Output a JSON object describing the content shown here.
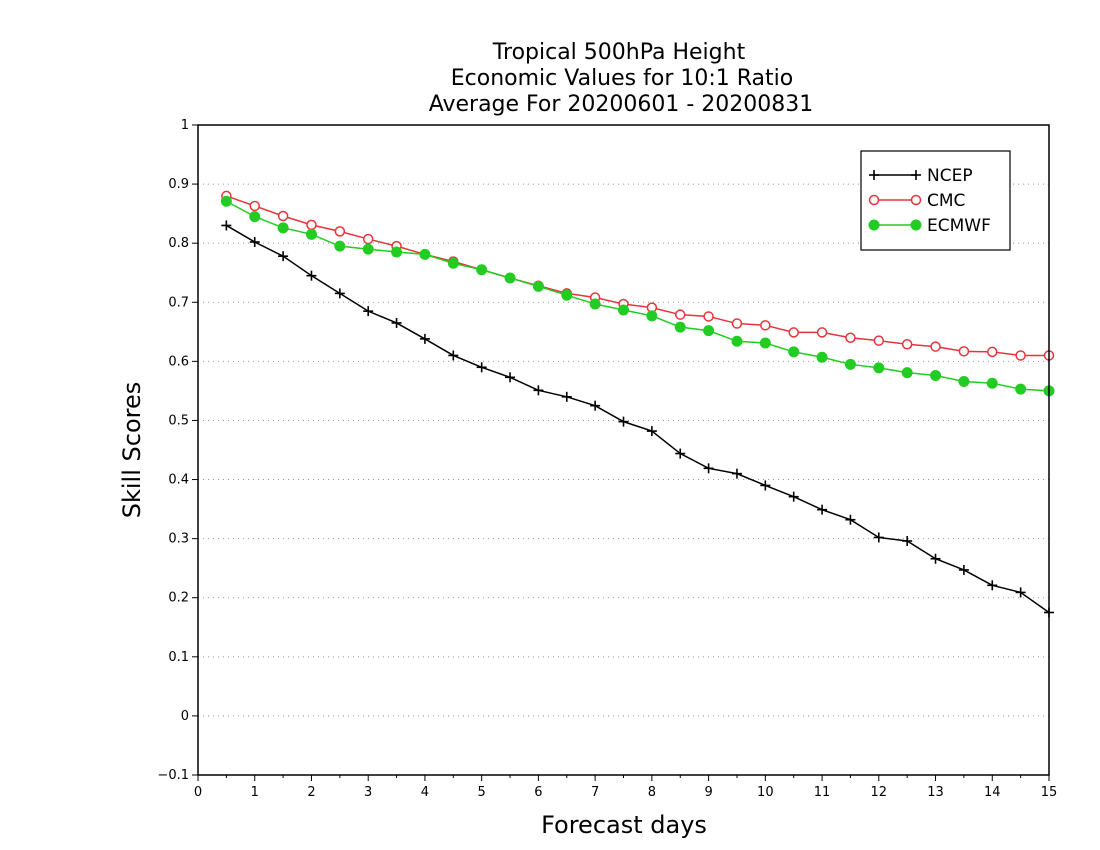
{
  "chart_data": {
    "type": "line",
    "title_lines": [
      "Tropical 500hPa Height",
      "Economic Values for 10:1 Ratio",
      "Average For 20200601 - 20200831"
    ],
    "xlabel": "Forecast days",
    "ylabel": "Skill Scores",
    "xlim": [
      0,
      15
    ],
    "ylim": [
      -0.1,
      1
    ],
    "x_ticks": [
      "0",
      "1",
      "2",
      "3",
      "4",
      "5",
      "6",
      "7",
      "8",
      "9",
      "10",
      "11",
      "12",
      "13",
      "14",
      "15"
    ],
    "y_ticks": [
      "−0.1",
      "0",
      "0.1",
      "0.2",
      "0.3",
      "0.4",
      "0.5",
      "0.6",
      "0.7",
      "0.8",
      "0.9",
      "1"
    ],
    "grid": "horizontal dotted",
    "legend_position": "top-right",
    "x": [
      0.5,
      1,
      1.5,
      2,
      2.5,
      3,
      3.5,
      4,
      4.5,
      5,
      5.5,
      6,
      6.5,
      7,
      7.5,
      8,
      8.5,
      9,
      9.5,
      10,
      10.5,
      11,
      11.5,
      12,
      12.5,
      13,
      13.5,
      14,
      14.5,
      15
    ],
    "series": [
      {
        "name": "NCEP",
        "color": "#000000",
        "marker": "plus",
        "values": [
          0.83,
          0.802,
          0.778,
          0.745,
          0.715,
          0.685,
          0.665,
          0.638,
          0.61,
          0.59,
          0.573,
          0.551,
          0.54,
          0.525,
          0.498,
          0.482,
          0.444,
          0.419,
          0.41,
          0.39,
          0.371,
          0.349,
          0.332,
          0.302,
          0.296,
          0.266,
          0.247,
          0.221,
          0.209,
          0.175
        ]
      },
      {
        "name": "CMC",
        "color": "#e8333a",
        "marker": "open-circle",
        "values": [
          0.88,
          0.863,
          0.846,
          0.831,
          0.82,
          0.807,
          0.795,
          0.781,
          0.769,
          0.755,
          0.741,
          0.728,
          0.715,
          0.708,
          0.697,
          0.691,
          0.679,
          0.676,
          0.664,
          0.661,
          0.649,
          0.649,
          0.64,
          0.635,
          0.629,
          0.625,
          0.617,
          0.616,
          0.61,
          0.61
        ]
      },
      {
        "name": "ECMWF",
        "color": "#22cc22",
        "marker": "filled-circle",
        "values": [
          0.871,
          0.845,
          0.826,
          0.815,
          0.795,
          0.79,
          0.785,
          0.781,
          0.766,
          0.755,
          0.741,
          0.727,
          0.712,
          0.697,
          0.687,
          0.677,
          0.658,
          0.652,
          0.634,
          0.631,
          0.616,
          0.607,
          0.595,
          0.589,
          0.581,
          0.576,
          0.566,
          0.563,
          0.553,
          0.55
        ]
      }
    ]
  }
}
